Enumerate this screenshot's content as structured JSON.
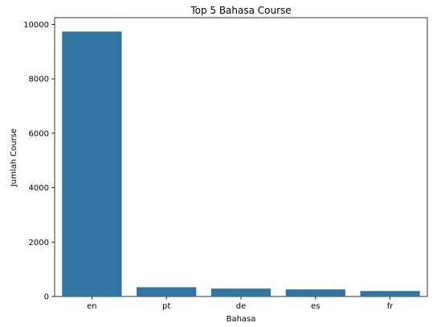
{
  "chart_data": {
    "type": "bar",
    "title": "Top 5 Bahasa Course",
    "xlabel": "Bahasa",
    "ylabel": "Jumlah Course",
    "categories": [
      "en",
      "pt",
      "de",
      "es",
      "fr"
    ],
    "values": [
      9740,
      340,
      290,
      260,
      200
    ],
    "ylim": [
      0,
      10250
    ],
    "yticks": [
      0,
      2000,
      4000,
      6000,
      8000,
      10000
    ],
    "grid": false,
    "bar_color": "#3274a1"
  }
}
